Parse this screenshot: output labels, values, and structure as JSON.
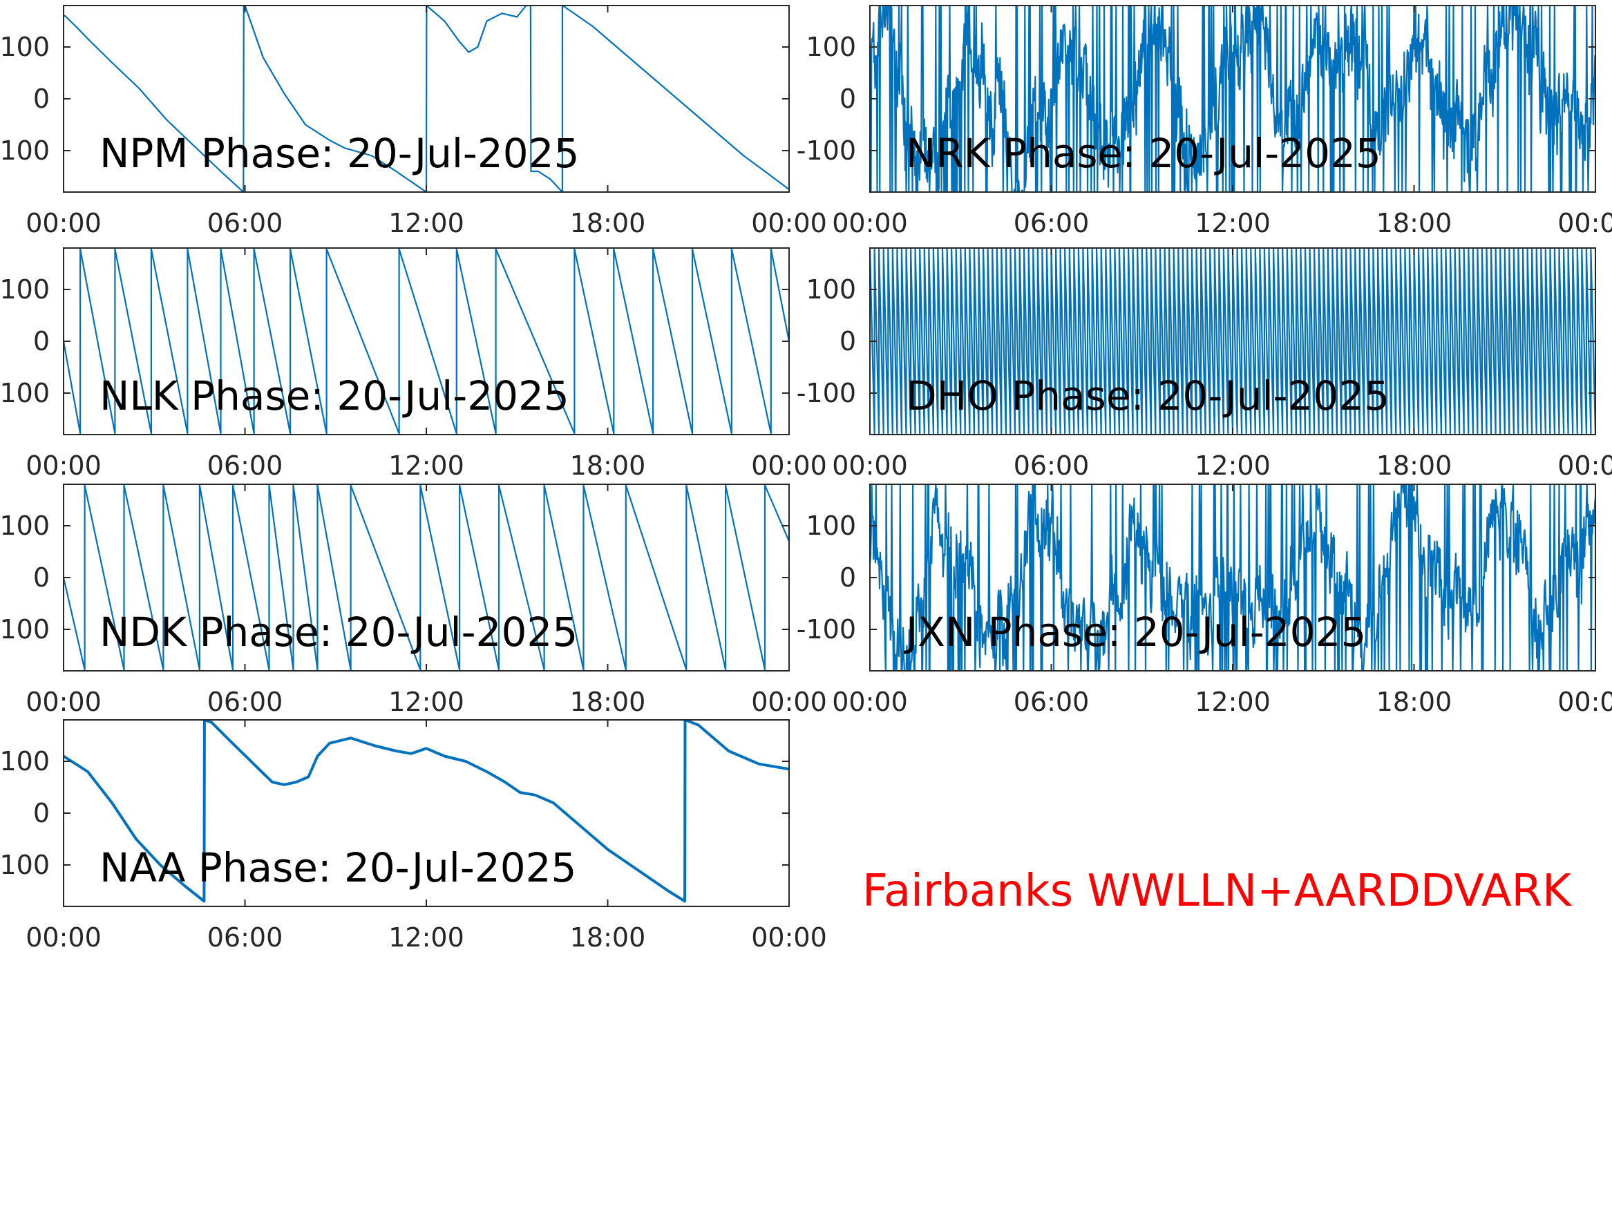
{
  "figure": {
    "footer": "Fairbanks WWLLN+AARDDVARK",
    "footer_color": "#ff0000",
    "line_color": "#0072bd"
  },
  "chart_data": [
    {
      "type": "line",
      "title": "NPM Phase: 20-Jul-2025",
      "x_ticks": [
        "00:00",
        "06:00",
        "12:00",
        "18:00",
        "00:00"
      ],
      "y_ticks": [
        "100",
        "0",
        "-100"
      ],
      "xlim_hours": [
        0,
        24
      ],
      "ylim": [
        -180,
        180
      ],
      "series": [
        {
          "style": "linear",
          "x": [
            0,
            0.05,
            0.4,
            0.9,
            1.6,
            2.5,
            3.4,
            4.3,
            5.2,
            5.95,
            5.96,
            6.0,
            6.6,
            7.3,
            8.0,
            8.8,
            9.3,
            9.6,
            10.2,
            11.0,
            12.0,
            12.01,
            12.6,
            13.1,
            13.4,
            13.7,
            14.0,
            14.5,
            15.0,
            15.3,
            15.45,
            15.46,
            15.7,
            16.1,
            16.5,
            16.5,
            16.51,
            17.5,
            18.5,
            19.5,
            20.5,
            21.5,
            22.5,
            23.2,
            24.0
          ],
          "y": [
            160,
            160,
            140,
            110,
            70,
            20,
            -40,
            -90,
            -140,
            -180,
            180,
            180,
            80,
            10,
            -50,
            -80,
            -95,
            -100,
            -110,
            -140,
            -180,
            180,
            150,
            110,
            90,
            100,
            150,
            165,
            158,
            180,
            180,
            -140,
            -140,
            -155,
            -180,
            180,
            180,
            140,
            90,
            40,
            -10,
            -60,
            -110,
            -140,
            -175
          ]
        }
      ]
    },
    {
      "type": "line",
      "title": "NRK Phase: 20-Jul-2025",
      "x_ticks": [
        "00:00",
        "06:00",
        "12:00",
        "18:00",
        "00:00"
      ],
      "y_ticks": [
        "100",
        "0",
        "-100"
      ],
      "xlim_hours": [
        0,
        24
      ],
      "ylim": [
        -180,
        180
      ],
      "series": [
        {
          "style": "noise",
          "seed": 7,
          "n": 1400,
          "baseline": [
            [
              0,
              0
            ],
            [
              24,
              0
            ]
          ],
          "wander": 160,
          "noise": 60
        }
      ]
    },
    {
      "type": "line",
      "title": "NLK Phase: 20-Jul-2025",
      "x_ticks": [
        "00:00",
        "06:00",
        "12:00",
        "18:00",
        "00:00"
      ],
      "y_ticks": [
        "100",
        "0",
        "-100"
      ],
      "xlim_hours": [
        0,
        24
      ],
      "ylim": [
        -180,
        180
      ],
      "series": [
        {
          "style": "sawtooth",
          "start_hours": 0,
          "start_value": 0,
          "wraps_hours": [
            0.55,
            1.7,
            2.9,
            4.1,
            5.2,
            6.3,
            7.5,
            8.7,
            11.1,
            13.0,
            14.3,
            16.9,
            18.2,
            19.5,
            20.8,
            22.1,
            23.4
          ],
          "end_value": 0
        }
      ]
    },
    {
      "type": "line",
      "title": "DHO Phase: 20-Jul-2025",
      "x_ticks": [
        "00:00",
        "06:00",
        "12:00",
        "18:00",
        "00:00"
      ],
      "y_ticks": [
        "100",
        "0",
        "-100"
      ],
      "xlim_hours": [
        0,
        24
      ],
      "ylim": [
        -180,
        180
      ],
      "series": [
        {
          "style": "sawtooth_regular",
          "cycles": 160
        }
      ]
    },
    {
      "type": "line",
      "title": "NDK Phase: 20-Jul-2025",
      "x_ticks": [
        "00:00",
        "06:00",
        "12:00",
        "18:00",
        "00:00"
      ],
      "y_ticks": [
        "100",
        "0",
        "-100"
      ],
      "xlim_hours": [
        0,
        24
      ],
      "ylim": [
        -180,
        180
      ],
      "series": [
        {
          "style": "sawtooth",
          "start_hours": 0,
          "start_value": 0,
          "wraps_hours": [
            0.7,
            2.0,
            3.3,
            4.5,
            5.6,
            6.8,
            7.6,
            8.4,
            9.5,
            11.8,
            13.1,
            14.4,
            15.9,
            17.2,
            18.6,
            20.6,
            21.9,
            23.2
          ],
          "end_value": 70
        }
      ]
    },
    {
      "type": "line",
      "title": "JXN Phase: 20-Jul-2025",
      "x_ticks": [
        "00:00",
        "06:00",
        "12:00",
        "18:00",
        "00:00"
      ],
      "y_ticks": [
        "100",
        "0",
        "-100"
      ],
      "xlim_hours": [
        0,
        24
      ],
      "ylim": [
        -180,
        180
      ],
      "series": [
        {
          "style": "noise",
          "seed": 21,
          "n": 1200,
          "baseline": [
            [
              0,
              20
            ],
            [
              24,
              20
            ]
          ],
          "wander": 150,
          "noise": 55
        }
      ]
    },
    {
      "type": "line",
      "title": "NAA Phase: 20-Jul-2025",
      "x_ticks": [
        "00:00",
        "06:00",
        "12:00",
        "18:00",
        "00:00"
      ],
      "y_ticks": [
        "100",
        "0",
        "-100"
      ],
      "xlim_hours": [
        0,
        24
      ],
      "ylim": [
        -180,
        180
      ],
      "series": [
        {
          "style": "linear",
          "thick": true,
          "x": [
            0,
            0.8,
            1.6,
            2.4,
            3.2,
            4.0,
            4.65,
            4.66,
            4.9,
            5.5,
            6.2,
            6.9,
            7.3,
            7.7,
            8.1,
            8.4,
            8.8,
            9.5,
            10.3,
            11.0,
            11.5,
            12.0,
            12.6,
            13.3,
            14.0,
            14.6,
            15.1,
            15.6,
            16.2,
            17.0,
            18.0,
            19.0,
            20.0,
            20.55,
            20.56,
            21.0,
            22.0,
            23.0,
            24.0
          ],
          "y": [
            110,
            80,
            20,
            -50,
            -100,
            -140,
            -170,
            180,
            175,
            140,
            100,
            60,
            55,
            60,
            70,
            110,
            135,
            145,
            130,
            120,
            115,
            125,
            110,
            100,
            80,
            60,
            40,
            35,
            20,
            -20,
            -70,
            -110,
            -150,
            -170,
            180,
            170,
            120,
            95,
            85
          ]
        }
      ]
    }
  ]
}
